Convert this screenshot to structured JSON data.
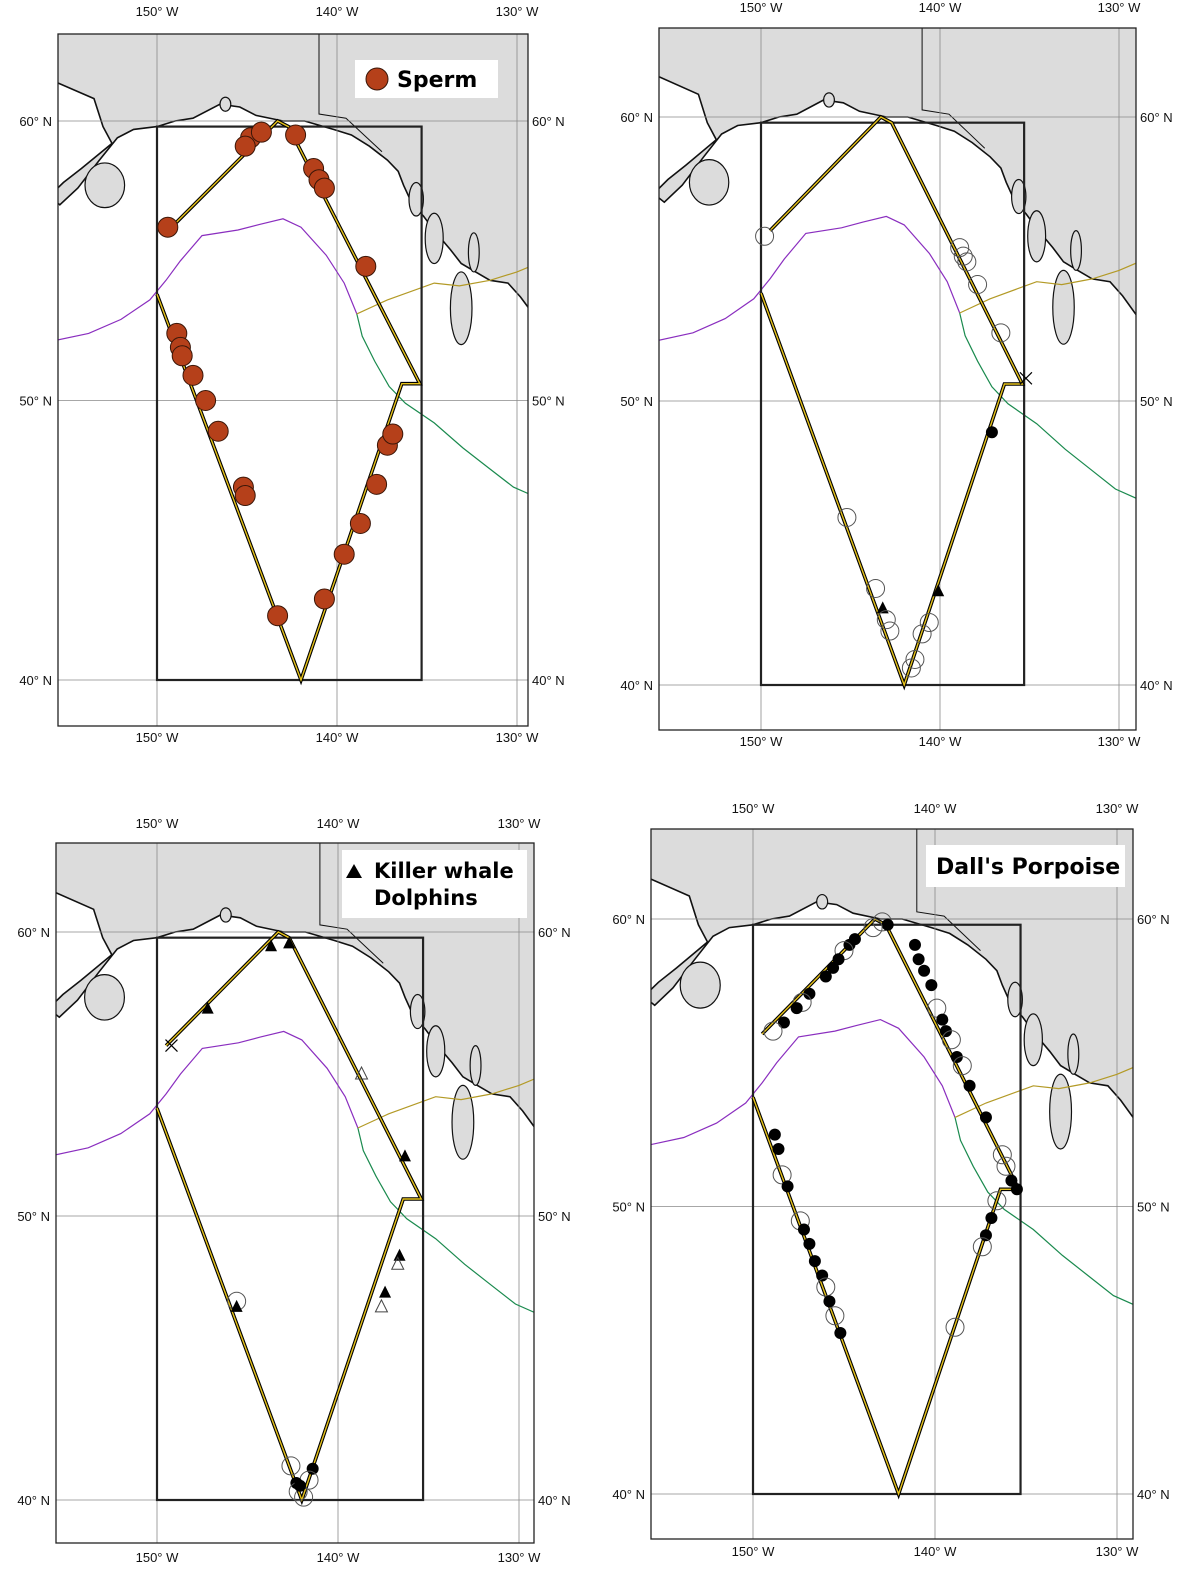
{
  "panels": [
    {
      "id": "top-left",
      "legend": {
        "lines": [
          "Sperm"
        ],
        "symbol": "filled-circle",
        "color": "#B5401A"
      },
      "lon_labels": [
        "150° W",
        "140° W",
        "130° W"
      ],
      "lat_labels": [
        "60° N",
        "50° N",
        "40° N"
      ],
      "points": [
        {
          "type": "sperm",
          "lon": -144.8,
          "lat": 59.4
        },
        {
          "type": "sperm",
          "lon": -144.2,
          "lat": 59.6
        },
        {
          "type": "sperm",
          "lon": -145.1,
          "lat": 59.1
        },
        {
          "type": "sperm",
          "lon": -142.3,
          "lat": 59.5
        },
        {
          "type": "sperm",
          "lon": -141.3,
          "lat": 58.3
        },
        {
          "type": "sperm",
          "lon": -141.0,
          "lat": 57.9
        },
        {
          "type": "sperm",
          "lon": -140.7,
          "lat": 57.6
        },
        {
          "type": "sperm",
          "lon": -149.4,
          "lat": 56.2
        },
        {
          "type": "sperm",
          "lon": -138.4,
          "lat": 54.8
        },
        {
          "type": "sperm",
          "lon": -148.9,
          "lat": 52.4
        },
        {
          "type": "sperm",
          "lon": -148.7,
          "lat": 51.9
        },
        {
          "type": "sperm",
          "lon": -148.6,
          "lat": 51.6
        },
        {
          "type": "sperm",
          "lon": -148.0,
          "lat": 50.9
        },
        {
          "type": "sperm",
          "lon": -147.3,
          "lat": 50.0
        },
        {
          "type": "sperm",
          "lon": -146.6,
          "lat": 48.9
        },
        {
          "type": "sperm",
          "lon": -145.2,
          "lat": 46.9
        },
        {
          "type": "sperm",
          "lon": -145.1,
          "lat": 46.6
        },
        {
          "type": "sperm",
          "lon": -143.3,
          "lat": 42.3
        },
        {
          "type": "sperm",
          "lon": -140.7,
          "lat": 42.9
        },
        {
          "type": "sperm",
          "lon": -139.6,
          "lat": 44.5
        },
        {
          "type": "sperm",
          "lon": -138.7,
          "lat": 45.6
        },
        {
          "type": "sperm",
          "lon": -137.8,
          "lat": 47.0
        },
        {
          "type": "sperm",
          "lon": -137.2,
          "lat": 48.4
        },
        {
          "type": "sperm",
          "lon": -136.9,
          "lat": 48.8
        }
      ]
    },
    {
      "id": "top-right",
      "legend": null,
      "lon_labels": [
        "150° W",
        "140° W",
        "130° W"
      ],
      "lat_labels": [
        "60° N",
        "50° N",
        "40° N"
      ],
      "points": [
        {
          "type": "open",
          "lon": -149.8,
          "lat": 55.8
        },
        {
          "type": "open",
          "lon": -138.9,
          "lat": 55.4
        },
        {
          "type": "open",
          "lon": -138.7,
          "lat": 55.1
        },
        {
          "type": "open",
          "lon": -138.5,
          "lat": 54.9
        },
        {
          "type": "open",
          "lon": -137.9,
          "lat": 54.1
        },
        {
          "type": "open",
          "lon": -136.6,
          "lat": 52.4
        },
        {
          "type": "cross",
          "lon": -135.2,
          "lat": 50.8
        },
        {
          "type": "filled",
          "lon": -137.1,
          "lat": 48.9
        },
        {
          "type": "open",
          "lon": -145.2,
          "lat": 45.9
        },
        {
          "type": "open",
          "lon": -143.6,
          "lat": 43.4
        },
        {
          "type": "tri",
          "lon": -143.2,
          "lat": 42.7
        },
        {
          "type": "open",
          "lon": -143.0,
          "lat": 42.3
        },
        {
          "type": "open",
          "lon": -142.8,
          "lat": 41.9
        },
        {
          "type": "tri",
          "lon": -140.1,
          "lat": 43.3
        },
        {
          "type": "open",
          "lon": -140.6,
          "lat": 42.2
        },
        {
          "type": "open",
          "lon": -141.0,
          "lat": 41.8
        },
        {
          "type": "open",
          "lon": -141.4,
          "lat": 40.9
        },
        {
          "type": "open",
          "lon": -141.6,
          "lat": 40.6
        }
      ]
    },
    {
      "id": "bottom-left",
      "legend": {
        "lines": [
          "Killer whale",
          "Dolphins"
        ],
        "symbol": "filled-triangle",
        "color": "#000000"
      },
      "lon_labels": [
        "150° W",
        "140° W",
        "130° W"
      ],
      "lat_labels": [
        "60° N",
        "50° N",
        "40° N"
      ],
      "points": [
        {
          "type": "tri",
          "lon": -143.7,
          "lat": 59.5
        },
        {
          "type": "tri",
          "lon": -142.7,
          "lat": 59.6
        },
        {
          "type": "tri",
          "lon": -147.2,
          "lat": 57.3
        },
        {
          "type": "cross",
          "lon": -149.2,
          "lat": 56.0
        },
        {
          "type": "opentri",
          "lon": -138.7,
          "lat": 55.0
        },
        {
          "type": "tri",
          "lon": -136.3,
          "lat": 52.1
        },
        {
          "type": "tri",
          "lon": -136.6,
          "lat": 48.6
        },
        {
          "type": "opentri",
          "lon": -136.7,
          "lat": 48.3
        },
        {
          "type": "tri",
          "lon": -137.4,
          "lat": 47.3
        },
        {
          "type": "opentri",
          "lon": -137.6,
          "lat": 46.8
        },
        {
          "type": "open",
          "lon": -145.6,
          "lat": 47.0
        },
        {
          "type": "tri",
          "lon": -145.6,
          "lat": 46.8
        },
        {
          "type": "open",
          "lon": -142.6,
          "lat": 41.2
        },
        {
          "type": "filled",
          "lon": -141.4,
          "lat": 41.1
        },
        {
          "type": "open",
          "lon": -141.6,
          "lat": 40.7
        },
        {
          "type": "filled",
          "lon": -142.3,
          "lat": 40.6
        },
        {
          "type": "open",
          "lon": -142.2,
          "lat": 40.3
        },
        {
          "type": "open",
          "lon": -141.9,
          "lat": 40.1
        },
        {
          "type": "filled",
          "lon": -142.1,
          "lat": 40.5
        }
      ]
    },
    {
      "id": "bottom-right",
      "legend": {
        "lines": [
          "Dall's Porpoise"
        ],
        "symbol": "none",
        "color": "#000000"
      },
      "lon_labels": [
        "150° W",
        "140° W",
        "130° W"
      ],
      "lat_labels": [
        "60° N",
        "50° N",
        "40° N"
      ],
      "points": [
        {
          "type": "open",
          "lon": -142.9,
          "lat": 59.9
        },
        {
          "type": "filled",
          "lon": -142.6,
          "lat": 59.8
        },
        {
          "type": "open",
          "lon": -143.4,
          "lat": 59.7
        },
        {
          "type": "filled",
          "lon": -144.4,
          "lat": 59.3
        },
        {
          "type": "filled",
          "lon": -144.7,
          "lat": 59.1
        },
        {
          "type": "open",
          "lon": -145.0,
          "lat": 58.9
        },
        {
          "type": "filled",
          "lon": -145.3,
          "lat": 58.6
        },
        {
          "type": "filled",
          "lon": -145.6,
          "lat": 58.3
        },
        {
          "type": "filled",
          "lon": -146.0,
          "lat": 58.0
        },
        {
          "type": "filled",
          "lon": -146.9,
          "lat": 57.4
        },
        {
          "type": "open",
          "lon": -147.3,
          "lat": 57.1
        },
        {
          "type": "filled",
          "lon": -147.6,
          "lat": 56.9
        },
        {
          "type": "filled",
          "lon": -148.3,
          "lat": 56.4
        },
        {
          "type": "open",
          "lon": -148.9,
          "lat": 56.1
        },
        {
          "type": "filled",
          "lon": -141.1,
          "lat": 59.1
        },
        {
          "type": "filled",
          "lon": -140.9,
          "lat": 58.6
        },
        {
          "type": "filled",
          "lon": -140.6,
          "lat": 58.2
        },
        {
          "type": "filled",
          "lon": -140.2,
          "lat": 57.7
        },
        {
          "type": "open",
          "lon": -139.9,
          "lat": 56.9
        },
        {
          "type": "filled",
          "lon": -139.6,
          "lat": 56.5
        },
        {
          "type": "filled",
          "lon": -139.4,
          "lat": 56.1
        },
        {
          "type": "open",
          "lon": -139.1,
          "lat": 55.8
        },
        {
          "type": "filled",
          "lon": -138.8,
          "lat": 55.2
        },
        {
          "type": "open",
          "lon": -138.5,
          "lat": 54.9
        },
        {
          "type": "filled",
          "lon": -138.1,
          "lat": 54.2
        },
        {
          "type": "filled",
          "lon": -137.2,
          "lat": 53.1
        },
        {
          "type": "open",
          "lon": -136.3,
          "lat": 51.8
        },
        {
          "type": "open",
          "lon": -136.1,
          "lat": 51.4
        },
        {
          "type": "filled",
          "lon": -135.8,
          "lat": 50.9
        },
        {
          "type": "filled",
          "lon": -135.5,
          "lat": 50.6
        },
        {
          "type": "filled",
          "lon": -148.8,
          "lat": 52.5
        },
        {
          "type": "filled",
          "lon": -148.6,
          "lat": 52.0
        },
        {
          "type": "open",
          "lon": -148.4,
          "lat": 51.1
        },
        {
          "type": "filled",
          "lon": -148.1,
          "lat": 50.7
        },
        {
          "type": "open",
          "lon": -147.4,
          "lat": 49.5
        },
        {
          "type": "filled",
          "lon": -147.2,
          "lat": 49.2
        },
        {
          "type": "filled",
          "lon": -146.9,
          "lat": 48.7
        },
        {
          "type": "filled",
          "lon": -146.6,
          "lat": 48.1
        },
        {
          "type": "filled",
          "lon": -146.2,
          "lat": 47.6
        },
        {
          "type": "open",
          "lon": -146.0,
          "lat": 47.2
        },
        {
          "type": "filled",
          "lon": -145.8,
          "lat": 46.7
        },
        {
          "type": "open",
          "lon": -145.5,
          "lat": 46.2
        },
        {
          "type": "filled",
          "lon": -145.2,
          "lat": 45.6
        },
        {
          "type": "open",
          "lon": -136.6,
          "lat": 50.2
        },
        {
          "type": "filled",
          "lon": -136.9,
          "lat": 49.6
        },
        {
          "type": "filled",
          "lon": -137.2,
          "lat": 49.0
        },
        {
          "type": "open",
          "lon": -137.4,
          "lat": 48.6
        },
        {
          "type": "open",
          "lon": -138.9,
          "lat": 45.8
        }
      ]
    }
  ]
}
